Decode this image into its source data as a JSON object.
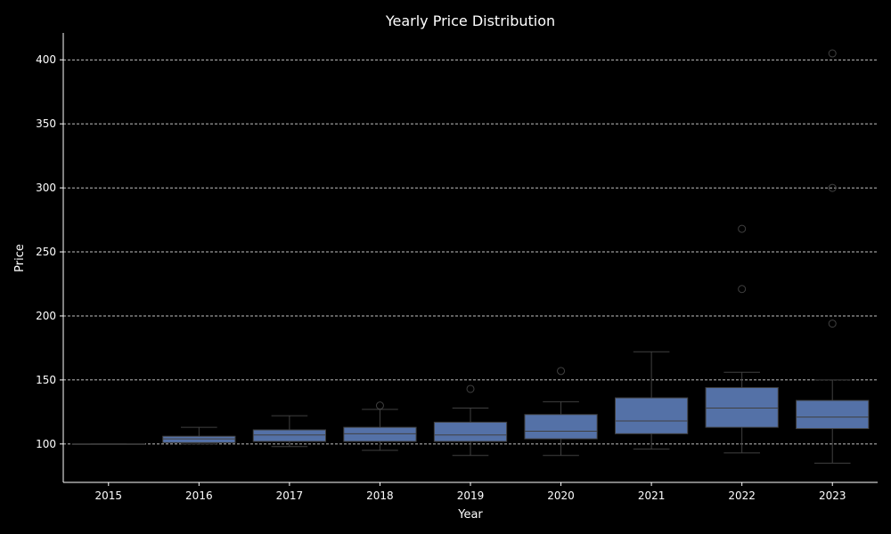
{
  "chart_data": {
    "type": "box",
    "title": "Yearly Price Distribution",
    "xlabel": "Year",
    "ylabel": "Price",
    "ylim": [
      70,
      421
    ],
    "yticks": [
      100,
      150,
      200,
      250,
      300,
      350,
      400
    ],
    "grid": "horizontal dashed",
    "legend": "none",
    "colors": {
      "background": "#000000",
      "box_fill": "#5471a7",
      "whisker": "#404040",
      "grid": "#ffffff",
      "text": "#ffffff"
    },
    "categories": [
      "2015",
      "2016",
      "2017",
      "2018",
      "2019",
      "2020",
      "2021",
      "2022",
      "2023"
    ],
    "boxes": [
      {
        "category": "2015",
        "whislo": 100,
        "q1": 100,
        "med": 100,
        "q3": 100,
        "whishi": 100,
        "fliers": []
      },
      {
        "category": "2016",
        "whislo": 100,
        "q1": 101,
        "med": 104,
        "q3": 106,
        "whishi": 113,
        "fliers": []
      },
      {
        "category": "2017",
        "whislo": 98,
        "q1": 102,
        "med": 107,
        "q3": 111,
        "whishi": 122,
        "fliers": []
      },
      {
        "category": "2018",
        "whislo": 95,
        "q1": 102,
        "med": 108,
        "q3": 113,
        "whishi": 127,
        "fliers": [
          130
        ]
      },
      {
        "category": "2019",
        "whislo": 91,
        "q1": 102,
        "med": 107,
        "q3": 117,
        "whishi": 128,
        "fliers": [
          143
        ]
      },
      {
        "category": "2020",
        "whislo": 91,
        "q1": 104,
        "med": 110,
        "q3": 123,
        "whishi": 133,
        "fliers": [
          157
        ]
      },
      {
        "category": "2021",
        "whislo": 96,
        "q1": 108,
        "med": 118,
        "q3": 136,
        "whishi": 172,
        "fliers": []
      },
      {
        "category": "2022",
        "whislo": 93,
        "q1": 113,
        "med": 128,
        "q3": 144,
        "whishi": 156,
        "fliers": [
          221,
          268
        ]
      },
      {
        "category": "2023",
        "whislo": 85,
        "q1": 112,
        "med": 121,
        "q3": 134,
        "whishi": 150,
        "fliers": [
          194,
          300,
          405
        ]
      }
    ]
  }
}
